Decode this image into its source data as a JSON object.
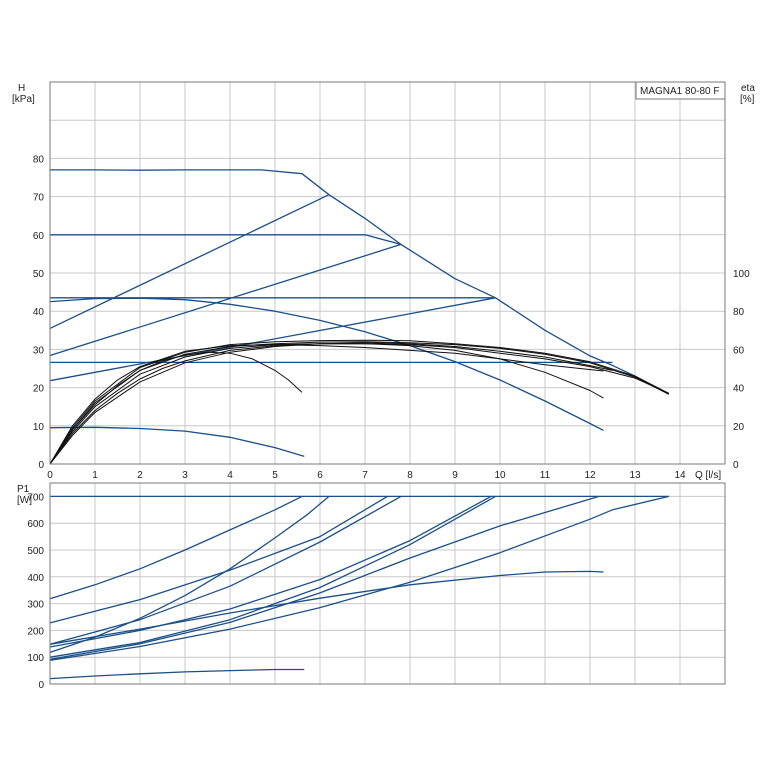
{
  "colors": {
    "pump_curve": "#1b4f8a",
    "eff_curve": "#111111",
    "grid": "#c8c8c8",
    "frame": "#7a7a7a"
  },
  "chart_data": [
    {
      "type": "line",
      "title": "MAGNA1 80-80 F",
      "xlabel": "Q [l/s]",
      "ylabel_left": "H\n[kPa]",
      "ylabel_right": "eta\n[%]",
      "xlim": [
        0,
        15
      ],
      "ylim_left": [
        0,
        100
      ],
      "ylim_right": [
        0,
        200
      ],
      "x_ticks": [
        0,
        1,
        2,
        3,
        4,
        5,
        6,
        7,
        8,
        9,
        10,
        11,
        12,
        13,
        14
      ],
      "y_ticks_left": [
        0,
        10,
        20,
        30,
        40,
        50,
        60,
        70,
        80
      ],
      "y_ticks_right": [
        0,
        20,
        40,
        60,
        80,
        100
      ],
      "grid": true,
      "head_series": [
        {
          "values": [
            [
              0,
              77
            ],
            [
              1,
              77
            ],
            [
              2,
              76.9
            ],
            [
              3,
              77
            ],
            [
              4,
              77
            ],
            [
              4.7,
              77
            ],
            [
              5.6,
              76
            ],
            [
              6.2,
              70.5
            ],
            [
              7,
              64.3
            ],
            [
              7.8,
              57.5
            ],
            [
              9,
              48.5
            ],
            [
              9.9,
              43.5
            ],
            [
              11,
              35
            ],
            [
              12,
              28.3
            ],
            [
              12.5,
              25.8
            ],
            [
              13,
              23
            ],
            [
              13.75,
              18.3
            ]
          ]
        },
        {
          "values": [
            [
              0,
              60
            ],
            [
              2,
              60
            ],
            [
              4,
              60
            ],
            [
              6,
              60
            ],
            [
              7,
              60
            ],
            [
              7.8,
              57.5
            ]
          ]
        },
        {
          "values": [
            [
              0,
              43.5
            ],
            [
              2,
              43.5
            ],
            [
              4,
              43.5
            ],
            [
              6,
              43.5
            ],
            [
              8,
              43.5
            ],
            [
              9.9,
              43.5
            ]
          ]
        },
        {
          "values": [
            [
              0,
              26.6
            ],
            [
              2,
              26.6
            ],
            [
              4,
              26.6
            ],
            [
              6,
              26.6
            ],
            [
              8,
              26.6
            ],
            [
              10,
              26.6
            ],
            [
              12,
              26.6
            ],
            [
              12.5,
              26.6
            ]
          ]
        },
        {
          "values": [
            [
              0,
              35.5
            ],
            [
              6.2,
              70.5
            ]
          ]
        },
        {
          "values": [
            [
              0,
              28.4
            ],
            [
              7.8,
              57.5
            ]
          ]
        },
        {
          "values": [
            [
              0,
              21.8
            ],
            [
              9.9,
              43.5
            ]
          ]
        },
        {
          "values": [
            [
              0,
              42.5
            ],
            [
              1,
              43.3
            ],
            [
              2,
              43.4
            ],
            [
              3,
              43
            ],
            [
              4,
              41.8
            ],
            [
              5,
              40
            ],
            [
              6,
              37.6
            ],
            [
              7,
              34.6
            ],
            [
              8,
              31
            ],
            [
              9,
              26.8
            ],
            [
              10,
              22
            ],
            [
              11,
              16.5
            ],
            [
              12,
              10.6
            ],
            [
              12.3,
              8.8
            ]
          ]
        },
        {
          "values": [
            [
              0,
              9.5
            ],
            [
              1,
              9.6
            ],
            [
              2,
              9.3
            ],
            [
              3,
              8.6
            ],
            [
              4,
              7
            ],
            [
              5,
              4.3
            ],
            [
              5.65,
              2
            ]
          ]
        }
      ],
      "efficiency_series": [
        {
          "values": [
            [
              0,
              0
            ],
            [
              0.5,
              18
            ],
            [
              1,
              31
            ],
            [
              1.5,
              41
            ],
            [
              2,
              49
            ],
            [
              2.5,
              54
            ],
            [
              3,
              57
            ],
            [
              3.5,
              58.5
            ],
            [
              4,
              58
            ],
            [
              4.5,
              55
            ],
            [
              5,
              49
            ],
            [
              5.3,
              44
            ],
            [
              5.6,
              37.5
            ]
          ]
        },
        {
          "values": [
            [
              0,
              0
            ],
            [
              0.5,
              20
            ],
            [
              1,
              34
            ],
            [
              1.5,
              44
            ],
            [
              2,
              51
            ],
            [
              3,
              59
            ],
            [
              4,
              62
            ],
            [
              5,
              62.5
            ],
            [
              6,
              62
            ],
            [
              7,
              61
            ],
            [
              8,
              59.5
            ],
            [
              9,
              58
            ],
            [
              10,
              55
            ],
            [
              11,
              52
            ],
            [
              12.3,
              48.7
            ]
          ]
        },
        {
          "values": [
            [
              0,
              0
            ],
            [
              0.5,
              16
            ],
            [
              1,
              28
            ],
            [
              1.5,
              37
            ],
            [
              2,
              44.5
            ],
            [
              2.5,
              50
            ],
            [
              3,
              54
            ],
            [
              4,
              59.5
            ],
            [
              5,
              62
            ],
            [
              6,
              63
            ],
            [
              7,
              63
            ],
            [
              8,
              62
            ],
            [
              9,
              59.5
            ],
            [
              10,
              55
            ],
            [
              11,
              48
            ],
            [
              12,
              38.5
            ],
            [
              12.3,
              34.5
            ]
          ]
        },
        {
          "values": [
            [
              0,
              0
            ],
            [
              0.5,
              17
            ],
            [
              1,
              30
            ],
            [
              2,
              47
            ],
            [
              3,
              56
            ],
            [
              4,
              60.5
            ],
            [
              5,
              62.5
            ],
            [
              6,
              63
            ],
            [
              7,
              63
            ],
            [
              8,
              62.5
            ],
            [
              9,
              61
            ],
            [
              10,
              58
            ],
            [
              11,
              55
            ],
            [
              12,
              51
            ],
            [
              13,
              45
            ],
            [
              13.75,
              37
            ]
          ]
        },
        {
          "values": [
            [
              0,
              0
            ],
            [
              0.5,
              18
            ],
            [
              1,
              32
            ],
            [
              2,
              49
            ],
            [
              3,
              57.5
            ],
            [
              4,
              61.5
            ],
            [
              5,
              63
            ],
            [
              6,
              63.8
            ],
            [
              7,
              64
            ],
            [
              8,
              63.5
            ],
            [
              9,
              62.5
            ],
            [
              10,
              60.5
            ],
            [
              11,
              57.5
            ],
            [
              12,
              53
            ],
            [
              13,
              45.5
            ],
            [
              13.75,
              36.5
            ]
          ]
        },
        {
          "values": [
            [
              0,
              0
            ],
            [
              0.5,
              19
            ],
            [
              1,
              33
            ],
            [
              2,
              50.5
            ],
            [
              3,
              58.5
            ],
            [
              4,
              62.5
            ],
            [
              5,
              64
            ],
            [
              6,
              64.6
            ],
            [
              7,
              64.8
            ],
            [
              8,
              64.5
            ],
            [
              9,
              63
            ],
            [
              10,
              61
            ],
            [
              11,
              58
            ],
            [
              12,
              53.5
            ],
            [
              13,
              46
            ],
            [
              13.75,
              37
            ]
          ]
        },
        {
          "values": [
            [
              0,
              0
            ],
            [
              0.5,
              15
            ],
            [
              1,
              27
            ],
            [
              2,
              43
            ],
            [
              3,
              53
            ],
            [
              4,
              58.5
            ],
            [
              5,
              61.5
            ],
            [
              6,
              63
            ],
            [
              7,
              63.5
            ],
            [
              8,
              63
            ],
            [
              9,
              61.5
            ],
            [
              10,
              59
            ],
            [
              11,
              56
            ],
            [
              12,
              51.5
            ],
            [
              12.5,
              49
            ]
          ]
        }
      ]
    },
    {
      "type": "line",
      "ylabel": "P1\n[W]",
      "xlim": [
        0,
        15
      ],
      "ylim": [
        0,
        750
      ],
      "x_ticks": [
        0,
        1,
        2,
        3,
        4,
        5,
        6,
        7,
        8,
        9,
        10,
        11,
        12,
        13,
        14
      ],
      "y_ticks": [
        0,
        100,
        200,
        300,
        400,
        500,
        600,
        700
      ],
      "grid": true,
      "power_series": [
        {
          "values": [
            [
              0,
              700
            ],
            [
              2,
              700
            ],
            [
              4,
              700
            ],
            [
              6,
              700
            ],
            [
              8,
              700
            ],
            [
              10,
              700
            ],
            [
              12,
              700
            ],
            [
              13.75,
              700
            ]
          ]
        },
        {
          "values": [
            [
              0,
              318
            ],
            [
              1,
              370
            ],
            [
              2,
              430
            ],
            [
              3,
              500
            ],
            [
              4,
              575
            ],
            [
              5,
              650
            ],
            [
              5.6,
              700
            ]
          ]
        },
        {
          "values": [
            [
              0,
              228
            ],
            [
              2,
              315
            ],
            [
              4,
              425
            ],
            [
              6,
              550
            ],
            [
              7.5,
              700
            ]
          ]
        },
        {
          "values": [
            [
              0,
              148
            ],
            [
              2,
              240
            ],
            [
              4,
              365
            ],
            [
              6,
              530
            ],
            [
              7.8,
              700
            ]
          ]
        },
        {
          "values": [
            [
              0,
              138
            ],
            [
              2,
              200
            ],
            [
              4,
              280
            ],
            [
              6,
              390
            ],
            [
              8,
              535
            ],
            [
              9.8,
              700
            ]
          ]
        },
        {
          "values": [
            [
              0,
              100
            ],
            [
              2,
              155
            ],
            [
              4,
              240
            ],
            [
              6,
              360
            ],
            [
              8,
              520
            ],
            [
              9.9,
              700
            ]
          ]
        },
        {
          "values": [
            [
              0,
              92
            ],
            [
              2,
              150
            ],
            [
              4,
              230
            ],
            [
              6,
              340
            ],
            [
              8,
              470
            ],
            [
              10,
              590
            ],
            [
              12.2,
              700
            ]
          ]
        },
        {
          "values": [
            [
              0,
              88
            ],
            [
              2,
              140
            ],
            [
              4,
              205
            ],
            [
              6,
              285
            ],
            [
              8,
              380
            ],
            [
              10,
              490
            ],
            [
              12,
              615
            ],
            [
              12.5,
              650
            ],
            [
              13.75,
              700
            ]
          ]
        },
        {
          "values": [
            [
              0,
              118
            ],
            [
              1,
              175
            ],
            [
              2,
              245
            ],
            [
              3,
              330
            ],
            [
              4,
              430
            ],
            [
              5,
              545
            ],
            [
              5.7,
              630
            ],
            [
              6.2,
              700
            ]
          ]
        },
        {
          "values": [
            [
              0,
              148
            ],
            [
              2,
              205
            ],
            [
              4,
              265
            ],
            [
              6,
              320
            ],
            [
              8,
              370
            ],
            [
              10,
              405
            ],
            [
              11,
              418
            ],
            [
              12,
              420
            ],
            [
              12.3,
              418
            ]
          ]
        },
        {
          "values": [
            [
              0,
              20
            ],
            [
              1,
              30
            ],
            [
              2,
              38
            ],
            [
              3,
              45
            ],
            [
              4,
              50
            ],
            [
              5,
              54
            ],
            [
              5.65,
              54
            ]
          ]
        }
      ]
    }
  ]
}
